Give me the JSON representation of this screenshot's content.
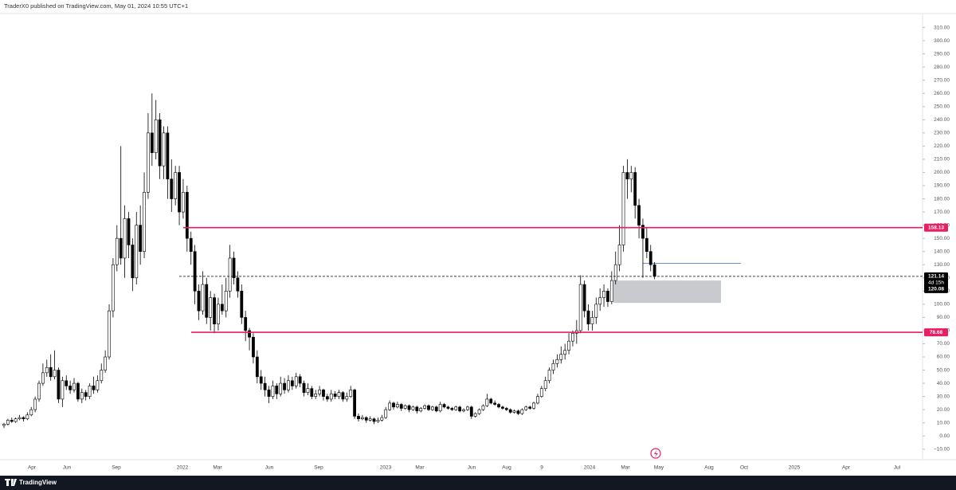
{
  "header": "TraderX0 published on TradingView.com, May 01, 2024 10:55 UTC+1",
  "footer": "TradingView",
  "chart_data": {
    "type": "candlestick",
    "ylim": [
      -18,
      320
    ],
    "yticks": [
      {
        "value": -10,
        "label": "−10.00"
      },
      {
        "value": 0,
        "label": "0.00"
      },
      {
        "value": 10,
        "label": "10.00"
      },
      {
        "value": 20,
        "label": "20.00"
      },
      {
        "value": 30,
        "label": "30.00"
      },
      {
        "value": 40,
        "label": "40.00"
      },
      {
        "value": 50,
        "label": "50.00"
      },
      {
        "value": 60,
        "label": "60.00"
      },
      {
        "value": 70,
        "label": "70.00"
      },
      {
        "value": 80,
        "label": "80.00"
      },
      {
        "value": 90,
        "label": "90.00"
      },
      {
        "value": 100,
        "label": "100.00"
      },
      {
        "value": 110,
        "label": "110.00"
      },
      {
        "value": 120,
        "label": "120.00"
      },
      {
        "value": 130,
        "label": "130.00"
      },
      {
        "value": 140,
        "label": "140.00"
      },
      {
        "value": 150,
        "label": "150.00"
      },
      {
        "value": 160,
        "label": "160.00"
      },
      {
        "value": 170,
        "label": "170.00"
      },
      {
        "value": 180,
        "label": "180.00"
      },
      {
        "value": 190,
        "label": "190.00"
      },
      {
        "value": 200,
        "label": "200.00"
      },
      {
        "value": 210,
        "label": "210.00"
      },
      {
        "value": 220,
        "label": "220.00"
      },
      {
        "value": 230,
        "label": "230.00"
      },
      {
        "value": 240,
        "label": "240.00"
      },
      {
        "value": 250,
        "label": "250.00"
      },
      {
        "value": 260,
        "label": "260.00"
      },
      {
        "value": 270,
        "label": "270.00"
      },
      {
        "value": 280,
        "label": "280.00"
      },
      {
        "value": 290,
        "label": "290.00"
      },
      {
        "value": 300,
        "label": "300.00"
      },
      {
        "value": 310,
        "label": "310.00"
      }
    ],
    "xticks": [
      "Apr",
      "Jun",
      "Sep",
      "2022",
      "Mar",
      "Jun",
      "Sep",
      "2023",
      "Mar",
      "Jun",
      "Aug",
      "9",
      "2024",
      "Mar",
      "May",
      "Aug",
      "Oct",
      "2025",
      "Apr",
      "Jul"
    ],
    "up_color": "#ffffff",
    "down_color": "#000000",
    "candles": [
      [
        8,
        10,
        6,
        9
      ],
      [
        9,
        13,
        8,
        12
      ],
      [
        12,
        14,
        10,
        11
      ],
      [
        11,
        14,
        10,
        13
      ],
      [
        13,
        16,
        12,
        14
      ],
      [
        14,
        15,
        11,
        13
      ],
      [
        13,
        18,
        12,
        16
      ],
      [
        16,
        22,
        15,
        20
      ],
      [
        20,
        30,
        18,
        28
      ],
      [
        28,
        42,
        26,
        40
      ],
      [
        40,
        55,
        38,
        48
      ],
      [
        48,
        58,
        45,
        52
      ],
      [
        52,
        62,
        42,
        45
      ],
      [
        45,
        65,
        43,
        50
      ],
      [
        50,
        52,
        25,
        28
      ],
      [
        28,
        45,
        22,
        42
      ],
      [
        42,
        46,
        35,
        38
      ],
      [
        38,
        42,
        32,
        35
      ],
      [
        35,
        44,
        33,
        40
      ],
      [
        40,
        41,
        26,
        28
      ],
      [
        28,
        36,
        25,
        33
      ],
      [
        33,
        35,
        27,
        30
      ],
      [
        30,
        40,
        28,
        38
      ],
      [
        38,
        45,
        32,
        35
      ],
      [
        35,
        46,
        33,
        42
      ],
      [
        42,
        55,
        40,
        50
      ],
      [
        50,
        65,
        48,
        60
      ],
      [
        60,
        100,
        58,
        95
      ],
      [
        95,
        135,
        90,
        130
      ],
      [
        130,
        160,
        125,
        150
      ],
      [
        150,
        220,
        130,
        135
      ],
      [
        135,
        175,
        120,
        165
      ],
      [
        165,
        170,
        135,
        145
      ],
      [
        145,
        150,
        110,
        120
      ],
      [
        120,
        170,
        115,
        160
      ],
      [
        160,
        175,
        130,
        140
      ],
      [
        140,
        200,
        135,
        185
      ],
      [
        185,
        245,
        180,
        230
      ],
      [
        230,
        260,
        205,
        215
      ],
      [
        215,
        255,
        210,
        240
      ],
      [
        240,
        245,
        195,
        205
      ],
      [
        205,
        235,
        195,
        230
      ],
      [
        230,
        235,
        180,
        195
      ],
      [
        195,
        210,
        170,
        180
      ],
      [
        180,
        205,
        175,
        200
      ],
      [
        200,
        205,
        160,
        170
      ],
      [
        170,
        195,
        165,
        185
      ],
      [
        185,
        190,
        140,
        150
      ],
      [
        150,
        155,
        130,
        140
      ],
      [
        140,
        145,
        100,
        110
      ],
      [
        110,
        115,
        88,
        95
      ],
      [
        95,
        125,
        92,
        115
      ],
      [
        115,
        120,
        85,
        90
      ],
      [
        90,
        110,
        80,
        105
      ],
      [
        105,
        108,
        78,
        85
      ],
      [
        85,
        105,
        80,
        100
      ],
      [
        100,
        115,
        92,
        95
      ],
      [
        95,
        120,
        90,
        110
      ],
      [
        110,
        145,
        105,
        135
      ],
      [
        135,
        140,
        115,
        120
      ],
      [
        120,
        125,
        105,
        110
      ],
      [
        110,
        115,
        85,
        90
      ],
      [
        90,
        95,
        72,
        80
      ],
      [
        80,
        82,
        65,
        75
      ],
      [
        75,
        78,
        55,
        60
      ],
      [
        60,
        65,
        40,
        45
      ],
      [
        45,
        50,
        35,
        40
      ],
      [
        40,
        45,
        30,
        35
      ],
      [
        35,
        38,
        25,
        30
      ],
      [
        30,
        42,
        28,
        38
      ],
      [
        38,
        40,
        28,
        32
      ],
      [
        32,
        45,
        30,
        40
      ],
      [
        40,
        44,
        32,
        35
      ],
      [
        35,
        46,
        33,
        42
      ],
      [
        42,
        45,
        35,
        38
      ],
      [
        38,
        48,
        36,
        45
      ],
      [
        45,
        47,
        37,
        40
      ],
      [
        40,
        42,
        30,
        33
      ],
      [
        33,
        40,
        31,
        36
      ],
      [
        36,
        38,
        28,
        30
      ],
      [
        30,
        35,
        28,
        32
      ],
      [
        32,
        38,
        30,
        35
      ],
      [
        35,
        36,
        27,
        30
      ],
      [
        30,
        32,
        26,
        28
      ],
      [
        28,
        35,
        26,
        32
      ],
      [
        32,
        34,
        28,
        30
      ],
      [
        30,
        35,
        28,
        33
      ],
      [
        33,
        34,
        26,
        28
      ],
      [
        28,
        33,
        26,
        30
      ],
      [
        30,
        38,
        29,
        35
      ],
      [
        35,
        36,
        13,
        15
      ],
      [
        15,
        17,
        11,
        13
      ],
      [
        13,
        16,
        12,
        14
      ],
      [
        14,
        15,
        10,
        12
      ],
      [
        12,
        15,
        11,
        13
      ],
      [
        13,
        14,
        9,
        11
      ],
      [
        11,
        14,
        10,
        12
      ],
      [
        12,
        16,
        11,
        14
      ],
      [
        14,
        22,
        13,
        20
      ],
      [
        20,
        27,
        19,
        25
      ],
      [
        25,
        26,
        20,
        22
      ],
      [
        22,
        26,
        21,
        24
      ],
      [
        24,
        25,
        19,
        21
      ],
      [
        21,
        24,
        20,
        23
      ],
      [
        23,
        24,
        18,
        20
      ],
      [
        20,
        23,
        19,
        22
      ],
      [
        22,
        23,
        17,
        19
      ],
      [
        19,
        22,
        18,
        21
      ],
      [
        21,
        24,
        20,
        23
      ],
      [
        23,
        24,
        19,
        20
      ],
      [
        20,
        23,
        19,
        22
      ],
      [
        22,
        23,
        18,
        19
      ],
      [
        19,
        26,
        18,
        24
      ],
      [
        24,
        25,
        21,
        22
      ],
      [
        22,
        23,
        20,
        21
      ],
      [
        21,
        22,
        19,
        20
      ],
      [
        20,
        23,
        19,
        22
      ],
      [
        22,
        23,
        18,
        19
      ],
      [
        19,
        21,
        18,
        20
      ],
      [
        20,
        23,
        19,
        22
      ],
      [
        22,
        23,
        13,
        15
      ],
      [
        15,
        18,
        14,
        17
      ],
      [
        17,
        21,
        16,
        20
      ],
      [
        20,
        24,
        19,
        23
      ],
      [
        23,
        32,
        22,
        28
      ],
      [
        28,
        29,
        24,
        25
      ],
      [
        25,
        27,
        23,
        24
      ],
      [
        24,
        25,
        21,
        22
      ],
      [
        22,
        23,
        20,
        21
      ],
      [
        21,
        22,
        19,
        20
      ],
      [
        20,
        21,
        17,
        18
      ],
      [
        18,
        20,
        17,
        19
      ],
      [
        19,
        20,
        16,
        17
      ],
      [
        17,
        21,
        16,
        20
      ],
      [
        20,
        23,
        19,
        22
      ],
      [
        22,
        23,
        20,
        21
      ],
      [
        21,
        26,
        20,
        25
      ],
      [
        25,
        32,
        24,
        30
      ],
      [
        30,
        38,
        29,
        36
      ],
      [
        36,
        45,
        34,
        42
      ],
      [
        42,
        52,
        40,
        50
      ],
      [
        50,
        58,
        47,
        55
      ],
      [
        55,
        62,
        52,
        58
      ],
      [
        58,
        68,
        55,
        62
      ],
      [
        62,
        70,
        58,
        65
      ],
      [
        65,
        78,
        62,
        72
      ],
      [
        72,
        80,
        68,
        78
      ],
      [
        78,
        88,
        70,
        80
      ],
      [
        80,
        122,
        78,
        115
      ],
      [
        115,
        118,
        90,
        95
      ],
      [
        95,
        100,
        80,
        85
      ],
      [
        85,
        95,
        80,
        90
      ],
      [
        90,
        105,
        85,
        100
      ],
      [
        100,
        112,
        95,
        105
      ],
      [
        105,
        115,
        98,
        110
      ],
      [
        110,
        112,
        98,
        102
      ],
      [
        102,
        125,
        100,
        118
      ],
      [
        118,
        140,
        115,
        130
      ],
      [
        130,
        160,
        125,
        145
      ],
      [
        145,
        205,
        140,
        200
      ],
      [
        200,
        210,
        180,
        195
      ],
      [
        195,
        205,
        185,
        200
      ],
      [
        200,
        204,
        165,
        175
      ],
      [
        175,
        180,
        150,
        160
      ],
      [
        160,
        165,
        120,
        150
      ],
      [
        150,
        158,
        135,
        140
      ],
      [
        140,
        145,
        125,
        130
      ],
      [
        130,
        132,
        119,
        121.14
      ]
    ],
    "levels": [
      {
        "value": 158.13,
        "color": "#e91e63"
      },
      {
        "value": 78.68,
        "color": "#e91e63"
      }
    ],
    "zone": [
      101,
      118
    ],
    "ray": 131,
    "current_price": {
      "value": 121.14,
      "countdown": "4d 15h",
      "second": 120.08
    }
  }
}
